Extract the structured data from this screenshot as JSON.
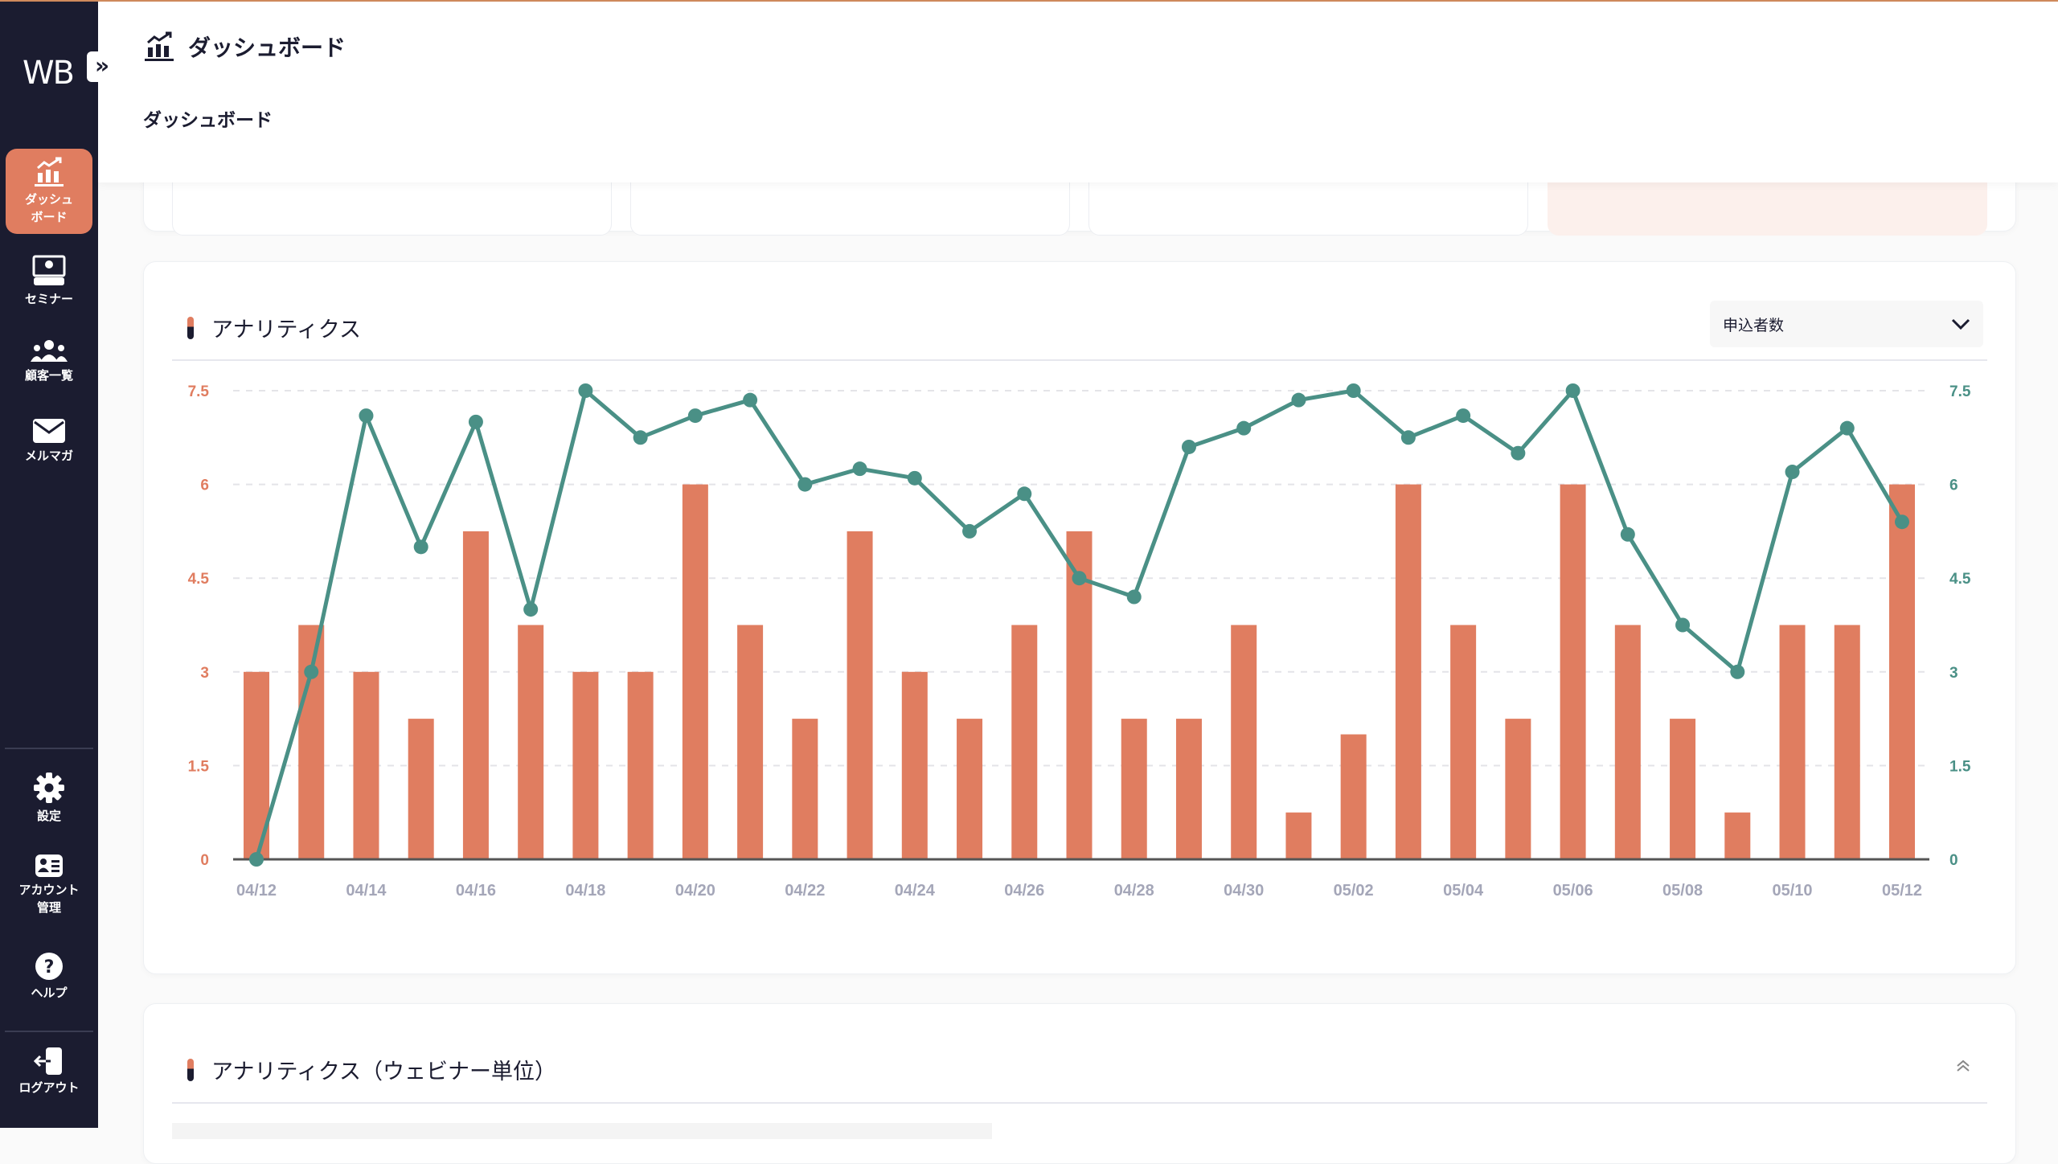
{
  "sidebar": {
    "logo": "WB",
    "toggle_icon": "»",
    "items": [
      {
        "label1": "ダッシュ",
        "label2": "ボード"
      },
      {
        "label1": "セミナー"
      },
      {
        "label1": "顧客一覧"
      },
      {
        "label1": "メルマガ"
      },
      {
        "label1": "設定"
      },
      {
        "label1": "アカウント",
        "label2": "管理"
      },
      {
        "label1": "ヘルプ"
      },
      {
        "label1": "ログアウト"
      }
    ]
  },
  "header": {
    "title": "ダッシュボード",
    "breadcrumb": "ダッシュボード"
  },
  "analytics": {
    "title": "アナリティクス",
    "select_value": "申込者数"
  },
  "analytics_webinar": {
    "title": "アナリティクス（ウェビナー単位）"
  },
  "colors": {
    "bar": "#e07d60",
    "line": "#4a9086",
    "sidebar": "#1b1c30"
  },
  "chart_data": {
    "type": "bar+line",
    "x": [
      "04/12",
      "04/13",
      "04/14",
      "04/15",
      "04/16",
      "04/17",
      "04/18",
      "04/19",
      "04/20",
      "04/21",
      "04/22",
      "04/23",
      "04/24",
      "04/25",
      "04/26",
      "04/27",
      "04/28",
      "04/29",
      "04/30",
      "05/01",
      "05/02",
      "05/03",
      "05/04",
      "05/05",
      "05/06",
      "05/07",
      "05/08",
      "05/09",
      "05/10",
      "05/11",
      "05/12"
    ],
    "xtick_labels": [
      "04/12",
      "04/14",
      "04/16",
      "04/18",
      "04/20",
      "04/22",
      "04/24",
      "04/26",
      "04/28",
      "04/30",
      "05/02",
      "05/04",
      "05/06",
      "05/08",
      "05/10",
      "05/12"
    ],
    "yticks": [
      "0",
      "1.5",
      "3",
      "4.5",
      "6",
      "7.5"
    ],
    "ylim": [
      0,
      7.5
    ],
    "series": [
      {
        "name": "bars",
        "type": "bar",
        "axis": "left",
        "values": [
          3,
          3.75,
          3,
          2.25,
          5.25,
          3.75,
          3,
          3,
          6,
          3.75,
          2.25,
          5.25,
          3,
          2.25,
          3.75,
          5.25,
          2.25,
          2.25,
          3.75,
          0.75,
          2,
          6,
          3.75,
          2.25,
          6,
          3.75,
          2.25,
          0.75,
          3.75,
          3.75,
          6
        ]
      },
      {
        "name": "line",
        "type": "line",
        "axis": "right",
        "values": [
          0,
          3,
          7.1,
          5,
          7,
          4,
          7.5,
          6.75,
          7.1,
          7.35,
          6,
          6.25,
          6.1,
          5.25,
          5.85,
          4.5,
          4.2,
          6.6,
          6.9,
          7.35,
          7.5,
          6.75,
          7.1,
          6.5,
          7.5,
          5.2,
          3.75,
          3,
          6.2,
          6.9,
          5.4
        ]
      }
    ],
    "grid": true
  }
}
